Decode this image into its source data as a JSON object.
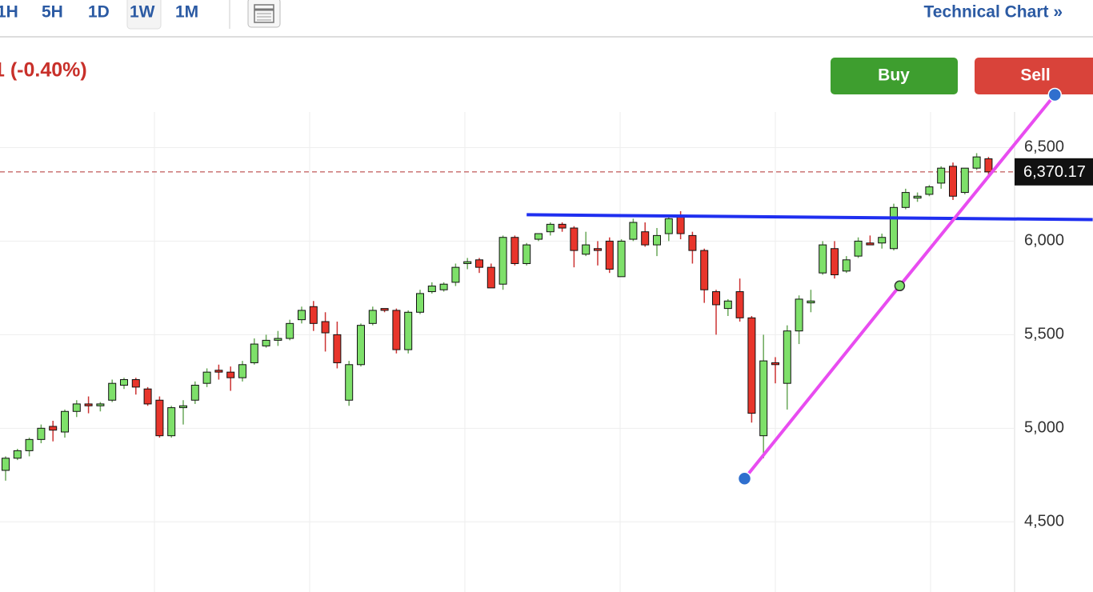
{
  "toolbar": {
    "tabs": [
      "1H",
      "5H",
      "1D",
      "1W",
      "1M"
    ],
    "active_tab": "1W",
    "link": "Technical Chart »"
  },
  "change": "1 (-0.40%)",
  "buttons": {
    "buy": "Buy",
    "sell": "Sell"
  },
  "chart_data": {
    "type": "candlestick",
    "open": [
      4775,
      4840,
      4880,
      4940,
      5010,
      4980,
      5090,
      5130,
      5120,
      5150,
      5230,
      5260,
      5210,
      5150,
      4960,
      5110,
      5150,
      5240,
      5310,
      5300,
      5270,
      5350,
      5440,
      5470,
      5480,
      5580,
      5650,
      5570,
      5500,
      5150,
      5340,
      5560,
      5640,
      5630,
      5420,
      5620,
      5730,
      5740,
      5780,
      5880,
      5900,
      5860,
      5770,
      6020,
      5880,
      6010,
      6050,
      6090,
      6070,
      5930,
      5960,
      6000,
      5810,
      6010,
      6050,
      5980,
      6040,
      6130,
      6030,
      5950,
      5730,
      5640,
      5730,
      5590,
      4960,
      5350,
      5240,
      5520,
      5670,
      5830,
      5960,
      5840,
      5920,
      5990,
      5990,
      5960,
      6180,
      6230,
      6250,
      6310,
      6400,
      6260,
      6390,
      6440
    ],
    "high": [
      4850,
      4890,
      4950,
      5020,
      5040,
      5100,
      5150,
      5170,
      5140,
      5260,
      5270,
      5270,
      5220,
      5170,
      5120,
      5150,
      5250,
      5320,
      5340,
      5330,
      5360,
      5480,
      5500,
      5520,
      5580,
      5650,
      5680,
      5620,
      5570,
      5360,
      5560,
      5650,
      5640,
      5640,
      5630,
      5740,
      5780,
      5780,
      5880,
      5910,
      5910,
      5880,
      6030,
      6030,
      5990,
      6040,
      6100,
      6100,
      6080,
      6050,
      6000,
      6020,
      6010,
      6120,
      6100,
      6070,
      6140,
      6160,
      6050,
      5960,
      5740,
      5690,
      5800,
      5600,
      5500,
      5380,
      5550,
      5710,
      5740,
      6000,
      6000,
      5920,
      6020,
      6030,
      6040,
      6200,
      6280,
      6260,
      6300,
      6400,
      6420,
      6380,
      6470,
      6450
    ],
    "low": [
      4720,
      4830,
      4850,
      4920,
      4930,
      4950,
      5060,
      5080,
      5090,
      5140,
      5210,
      5180,
      5120,
      4950,
      4950,
      5020,
      5130,
      5220,
      5260,
      5200,
      5250,
      5340,
      5430,
      5440,
      5470,
      5560,
      5520,
      5410,
      5320,
      5120,
      5330,
      5550,
      5620,
      5400,
      5400,
      5610,
      5720,
      5730,
      5760,
      5850,
      5830,
      5750,
      5740,
      5870,
      5870,
      6000,
      6030,
      6050,
      5860,
      5920,
      5870,
      5830,
      5810,
      6000,
      5970,
      5920,
      6000,
      6010,
      5880,
      5670,
      5500,
      5600,
      5570,
      5030,
      4840,
      5240,
      5100,
      5450,
      5620,
      5820,
      5800,
      5830,
      5910,
      5980,
      5960,
      5950,
      6170,
      6210,
      6240,
      6280,
      6220,
      6250,
      6380,
      6340
    ],
    "close": [
      4840,
      4880,
      4940,
      5000,
      4990,
      5090,
      5130,
      5120,
      5130,
      5240,
      5260,
      5220,
      5130,
      4960,
      5110,
      5120,
      5230,
      5300,
      5300,
      5270,
      5340,
      5450,
      5470,
      5480,
      5560,
      5630,
      5560,
      5510,
      5350,
      5340,
      5550,
      5630,
      5630,
      5420,
      5620,
      5720,
      5760,
      5770,
      5860,
      5890,
      5860,
      5750,
      6020,
      5880,
      5980,
      6040,
      6090,
      6070,
      5950,
      5980,
      5950,
      5850,
      6000,
      6100,
      5980,
      6030,
      6120,
      6040,
      5950,
      5740,
      5660,
      5680,
      5590,
      5080,
      5360,
      5340,
      5520,
      5690,
      5680,
      5980,
      5820,
      5900,
      6000,
      5980,
      6020,
      6180,
      6260,
      6240,
      6290,
      6390,
      6240,
      6390,
      6450,
      6370
    ],
    "ylim": [
      4125,
      6690
    ],
    "yticks": [
      {
        "value": 4500,
        "label": "4,500"
      },
      {
        "value": 5000,
        "label": "5,000"
      },
      {
        "value": 5500,
        "label": "5,500"
      },
      {
        "value": 6000,
        "label": "6,000"
      },
      {
        "value": 6500,
        "label": "6,500"
      }
    ],
    "last_price": {
      "value": 6370.17,
      "label": "6,370.17"
    },
    "up_color": "#7ee06a",
    "down_color": "#e8352b",
    "grid": true,
    "drawings": [
      {
        "color": "#1f2ff0",
        "x": [
          44,
          91.8
        ],
        "y": [
          6141,
          6115
        ],
        "handles": false
      },
      {
        "color": "#e84cf0",
        "x": [
          62.4,
          75.5,
          88.6
        ],
        "y": [
          4731,
          5761,
          6782
        ],
        "handles": true
      }
    ]
  }
}
